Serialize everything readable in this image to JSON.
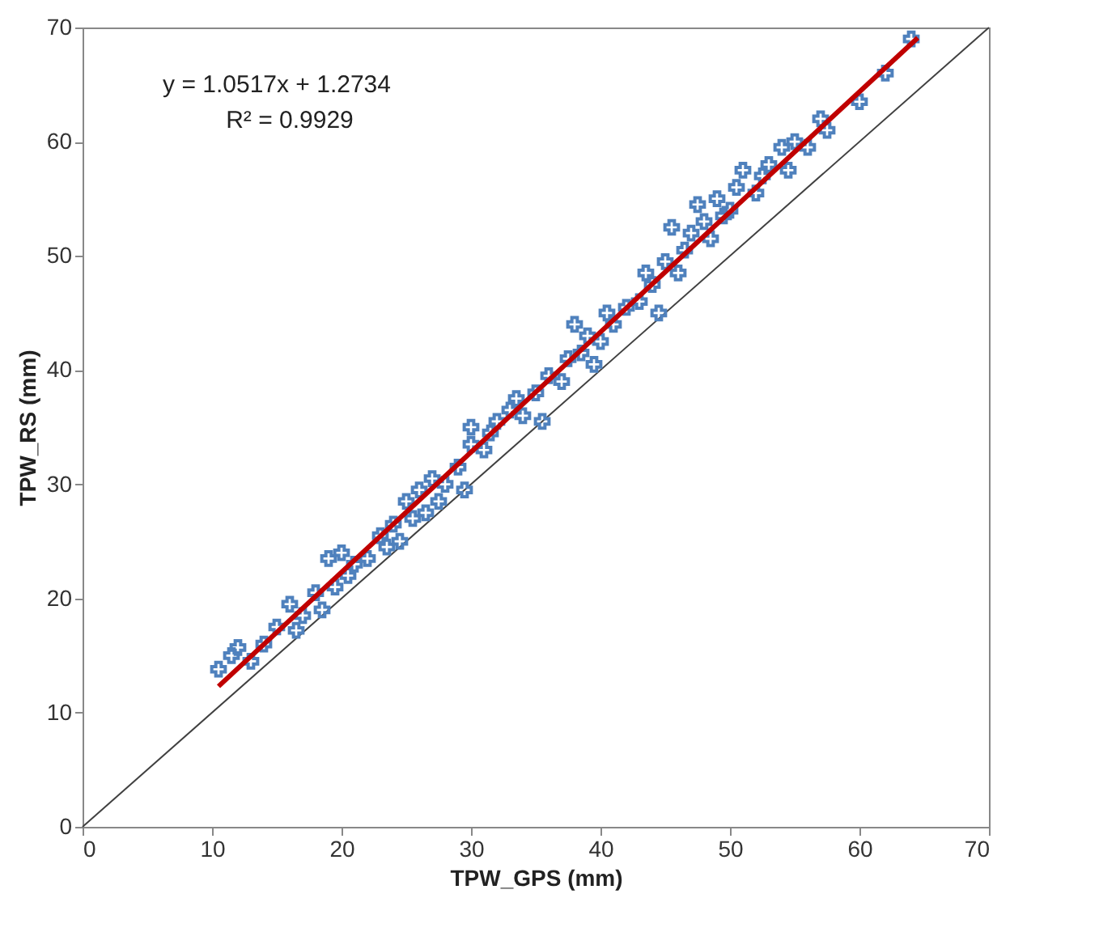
{
  "chart_data": {
    "type": "scatter",
    "xlabel": "TPW_GPS  (mm)",
    "ylabel": "TPW_RS (mm)",
    "xlim": [
      0,
      70
    ],
    "ylim": [
      0,
      70
    ],
    "xticks": [
      0,
      10,
      20,
      30,
      40,
      50,
      60,
      70
    ],
    "yticks": [
      0,
      10,
      20,
      30,
      40,
      50,
      60,
      70
    ],
    "grid": false,
    "annotations": [
      "y = 1.0517x + 1.2734",
      "R² = 0.9929"
    ],
    "series": [
      {
        "type": "line",
        "marker": "none",
        "color": "#404040",
        "x": [
          0,
          70
        ],
        "values": [
          0,
          70
        ]
      },
      {
        "marker": "cross",
        "color": "#4f81bd",
        "x": [
          10.5,
          11.5,
          12,
          13,
          14,
          15,
          16,
          16.5,
          17,
          18,
          18.5,
          19,
          19.5,
          20,
          20.5,
          21,
          22,
          23,
          23.5,
          24,
          24.5,
          25,
          25.5,
          26,
          26.5,
          27,
          27.5,
          28,
          29,
          29.5,
          30,
          30,
          31,
          31.5,
          32,
          33,
          33.5,
          34,
          35,
          35.5,
          36,
          37,
          37.5,
          38,
          38.5,
          39,
          39.5,
          40,
          40.5,
          41,
          42,
          43,
          43.5,
          44,
          44.5,
          45,
          45.5,
          46,
          46.5,
          47,
          47.5,
          48,
          48.5,
          49,
          49.5,
          50,
          50.5,
          51,
          52,
          52.5,
          53,
          54,
          54.5,
          55,
          56,
          57,
          57.5,
          60,
          62,
          64
        ],
        "values": [
          13.8,
          15,
          15.7,
          14.5,
          16,
          17.5,
          19.5,
          17.2,
          18.5,
          20.5,
          19,
          23.5,
          21,
          24,
          22,
          23,
          23.5,
          25.5,
          24.5,
          26.5,
          25,
          28.5,
          27,
          29.5,
          27.5,
          30.5,
          28.5,
          30,
          31.5,
          29.5,
          33.5,
          35,
          33,
          34.5,
          35.5,
          36.5,
          37.5,
          36,
          38,
          35.5,
          39.5,
          39,
          41,
          44,
          41.5,
          43,
          40.5,
          42.5,
          45,
          44,
          45.5,
          46,
          48.5,
          47.5,
          45,
          49.5,
          52.5,
          48.5,
          50.5,
          52,
          54.5,
          53,
          51.5,
          55,
          53.5,
          54,
          56,
          57.5,
          55.5,
          57,
          58,
          59.5,
          57.5,
          60,
          59.5,
          62,
          61,
          63.5,
          66,
          69
        ]
      },
      {
        "type": "line",
        "marker": "none",
        "color": "#c00000",
        "x": [
          10.5,
          64.5
        ],
        "values": [
          12.3,
          69.1
        ]
      }
    ]
  }
}
